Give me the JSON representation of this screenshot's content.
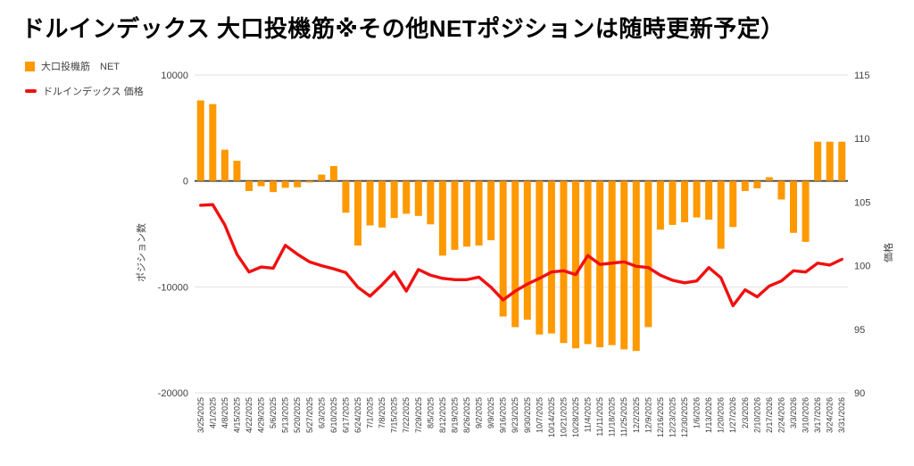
{
  "page": {
    "title": "ドルインデックス 大口投機筋※その他NETポジションは随時更新予定）"
  },
  "legend": {
    "items": [
      {
        "label": "大口投機筋　NET",
        "color": "#FF9900",
        "shape": "square"
      },
      {
        "label": "ドルインデックス 価格",
        "color": "#F01010",
        "shape": "line"
      }
    ]
  },
  "chart_data": {
    "type": "combo",
    "categories": [
      "3/25/2025",
      "4/1/2025",
      "4/8/2025",
      "4/15/2025",
      "4/22/2025",
      "4/29/2025",
      "5/6/2025",
      "5/13/2025",
      "5/20/2025",
      "5/27/2025",
      "6/3/2025",
      "6/10/2025",
      "6/17/2025",
      "6/24/2025",
      "7/1/2025",
      "7/8/2025",
      "7/15/2025",
      "7/22/2025",
      "7/29/2025",
      "8/5/2025",
      "8/12/2025",
      "8/19/2025",
      "8/26/2025",
      "9/2/2025",
      "9/9/2025",
      "9/16/2025",
      "9/23/2025",
      "9/30/2025",
      "10/7/2025",
      "10/14/2025",
      "10/21/2025",
      "10/28/2025",
      "11/4/2025",
      "11/11/2025",
      "11/18/2025",
      "11/25/2025",
      "12/2/2025",
      "12/9/2025",
      "12/16/2025",
      "12/23/2025",
      "12/30/2025",
      "1/6/2026",
      "1/13/2026",
      "1/20/2026",
      "1/27/2026",
      "2/3/2026",
      "2/10/2026",
      "2/17/2026",
      "2/24/2026",
      "3/3/2026",
      "3/10/2026",
      "3/17/2026",
      "3/24/2026",
      "3/31/2026"
    ],
    "series": [
      {
        "name": "大口投機筋 NET",
        "type": "bar",
        "axis": "left",
        "color": "#FF9900",
        "values": [
          7600,
          7250,
          2950,
          1900,
          -950,
          -500,
          -1050,
          -650,
          -600,
          -150,
          600,
          1400,
          -3000,
          -6100,
          -4200,
          -4400,
          -3500,
          -3100,
          -3300,
          -4100,
          -7050,
          -6500,
          -6200,
          -6100,
          -5600,
          -12800,
          -13800,
          -13100,
          -14500,
          -14400,
          -15300,
          -15800,
          -15400,
          -15700,
          -15500,
          -15900,
          -16050,
          -13800,
          -4600,
          -4150,
          -3900,
          -3450,
          -3650,
          -6400,
          -4350,
          -950,
          -700,
          350,
          -1750,
          -4900,
          -5750,
          3700,
          3700,
          3700
        ]
      },
      {
        "name": "ドルインデックス 価格",
        "type": "line",
        "axis": "right",
        "color": "#F01010",
        "values": [
          104.75,
          104.8,
          103.2,
          100.9,
          99.5,
          99.9,
          99.8,
          101.6,
          100.9,
          100.3,
          100.0,
          99.75,
          99.45,
          98.3,
          97.6,
          98.5,
          99.5,
          98.0,
          99.7,
          99.25,
          99.0,
          98.9,
          98.9,
          99.1,
          98.3,
          97.3,
          98.0,
          98.55,
          99.0,
          99.5,
          99.6,
          99.3,
          100.8,
          100.1,
          100.2,
          100.3,
          99.95,
          99.85,
          99.25,
          98.85,
          98.65,
          98.8,
          99.85,
          99.05,
          96.85,
          98.1,
          97.55,
          98.4,
          98.8,
          99.6,
          99.5,
          100.2,
          100.05,
          100.5
        ]
      }
    ],
    "left_axis": {
      "title": "ポジション数",
      "min": -20000,
      "max": 10000,
      "ticks": [
        10000,
        0,
        -10000,
        -20000
      ]
    },
    "right_axis": {
      "title": "価格",
      "min": 90,
      "max": 115,
      "ticks": [
        115,
        110,
        105,
        100,
        95,
        90
      ]
    },
    "grid": "horizontal, at left-axis ticks only",
    "legend_position": "top-left"
  }
}
